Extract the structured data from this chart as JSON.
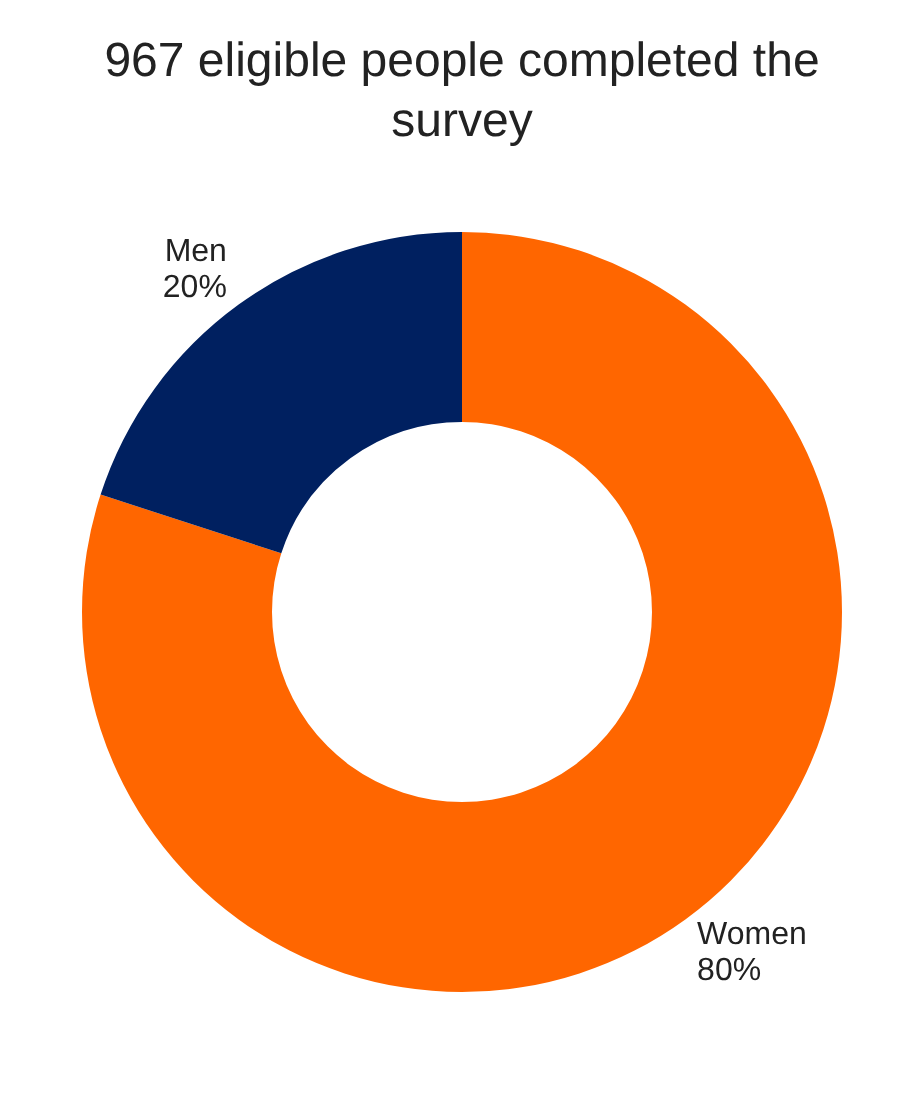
{
  "chart_data": {
    "type": "donut",
    "title": "967 eligible people completed the survey",
    "categories": [
      "Women",
      "Men"
    ],
    "values": [
      80,
      20
    ],
    "value_labels": [
      "80%",
      "20%"
    ],
    "colors": [
      "#ff6600",
      "#002060"
    ],
    "legend": false
  }
}
